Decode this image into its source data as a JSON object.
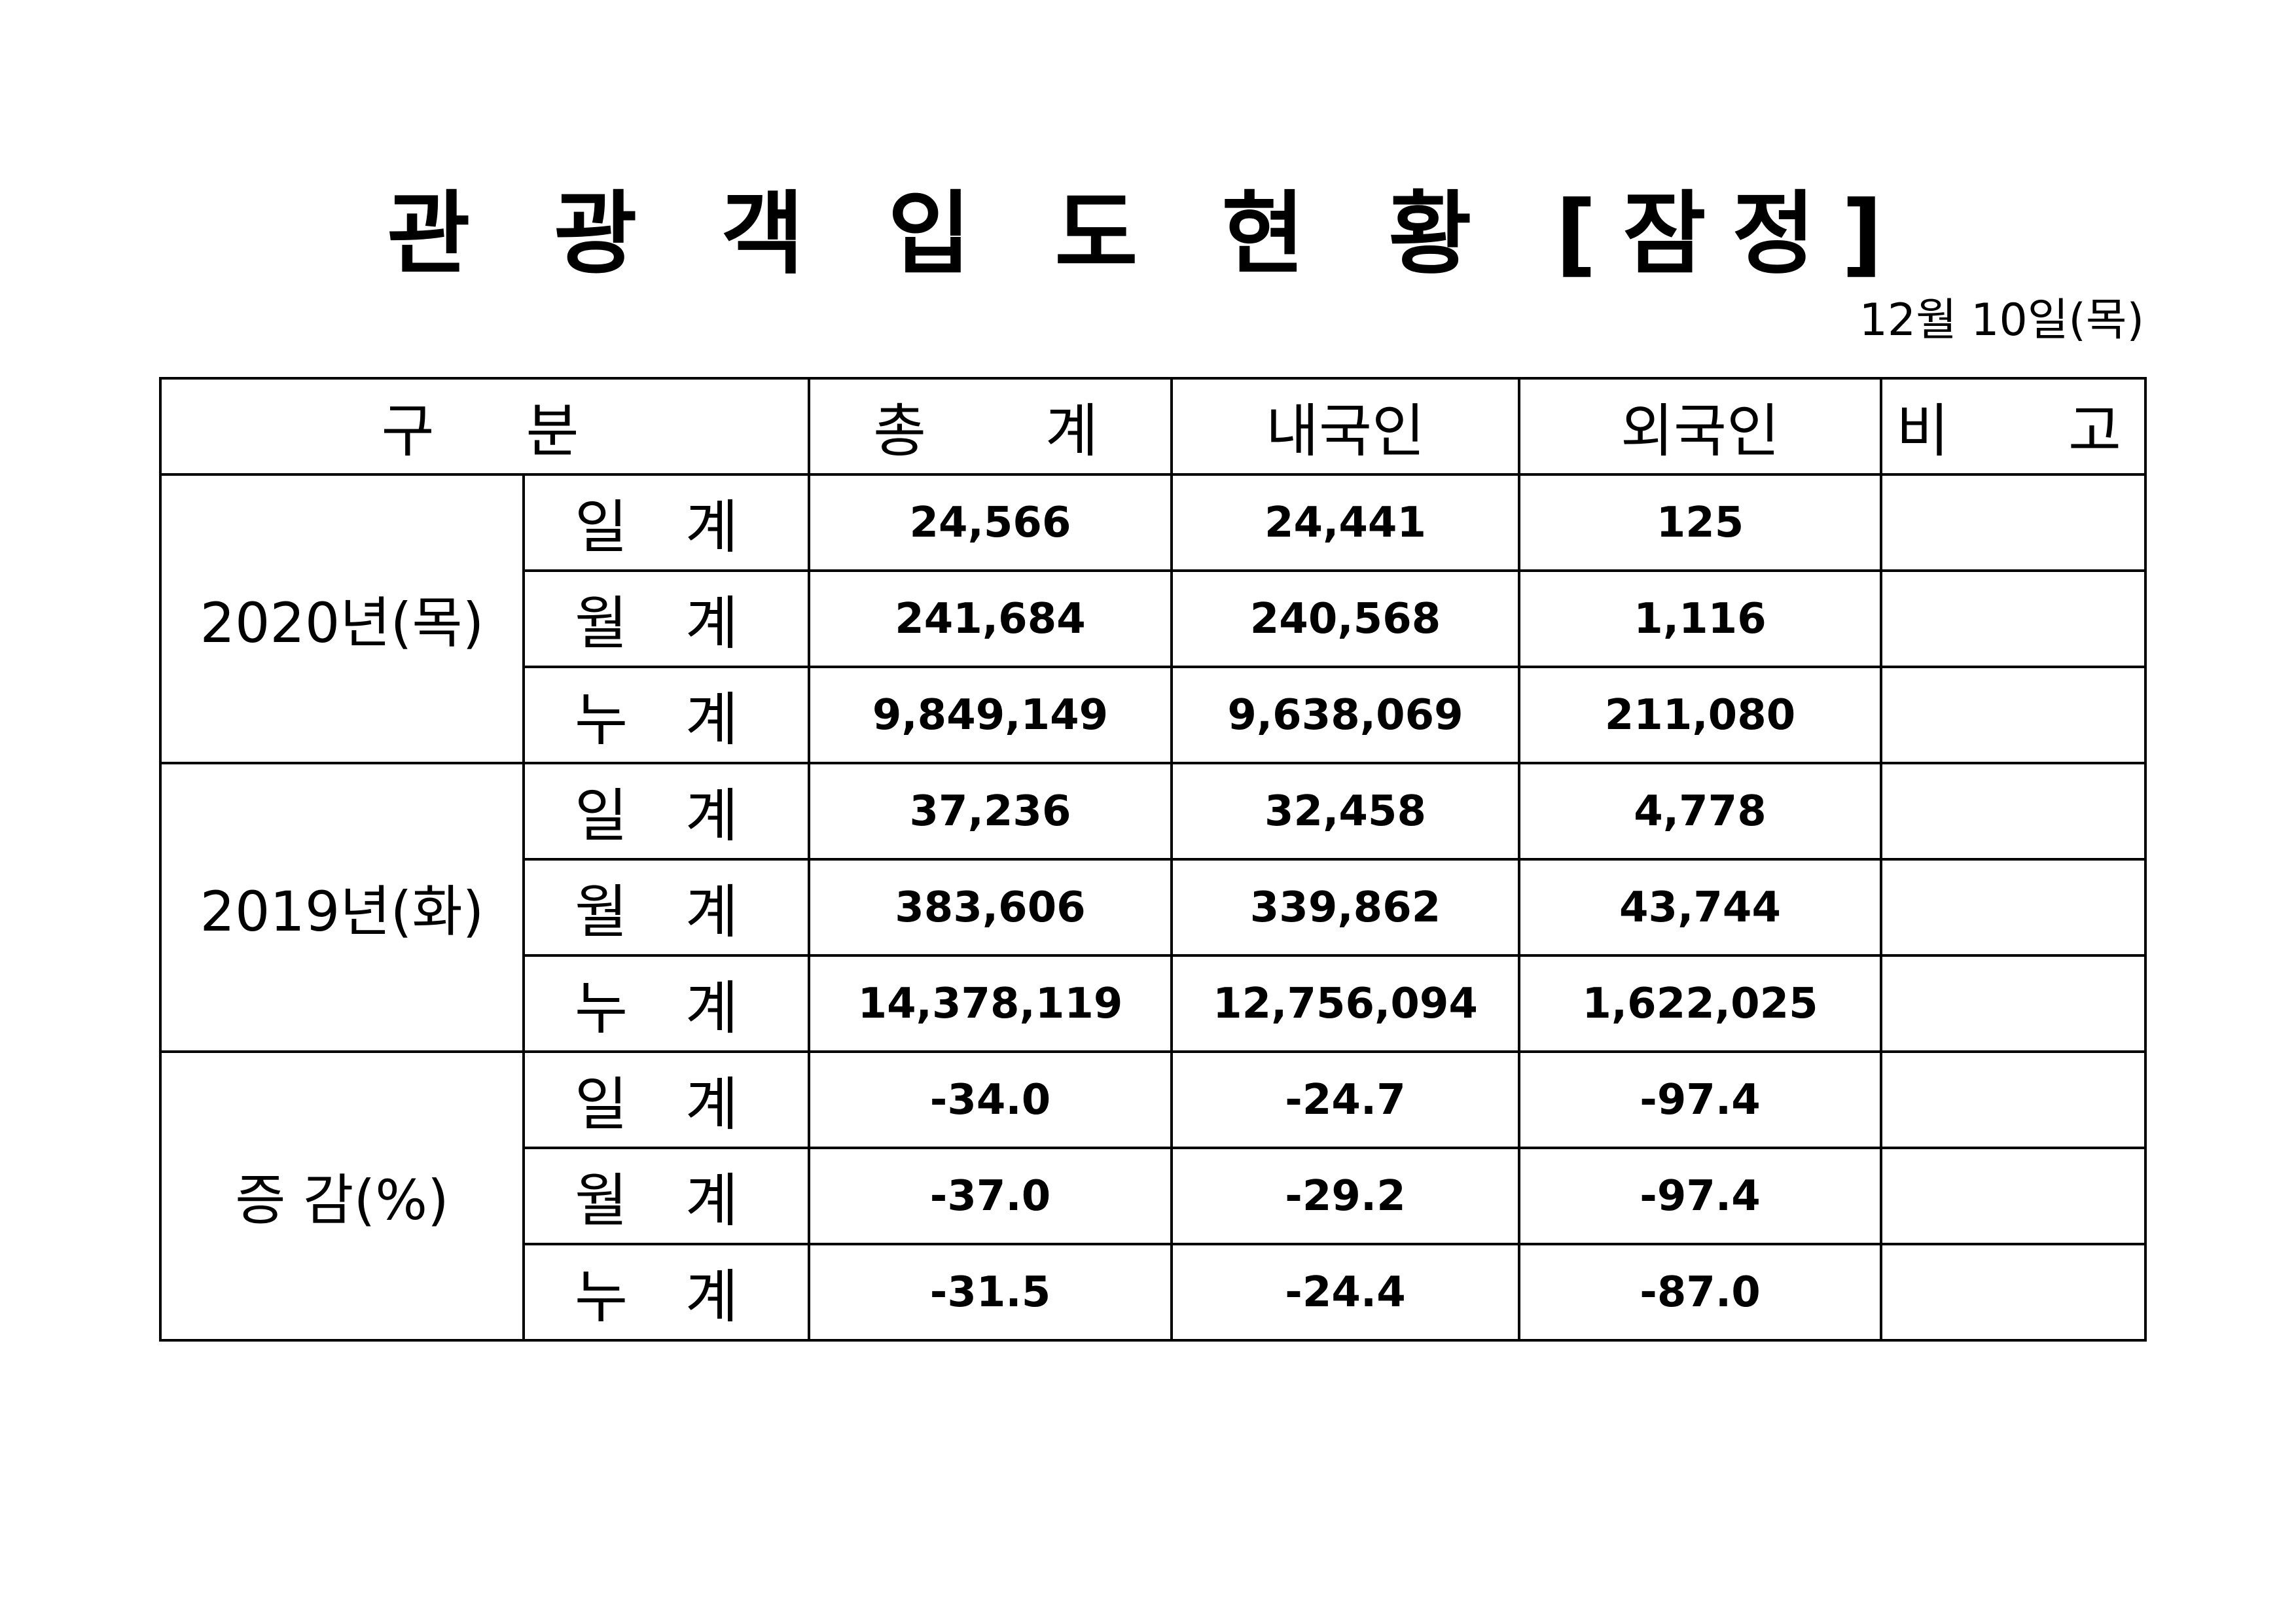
{
  "title": "관 광 객 입 도 현 황 [잠정]",
  "date": "12월  10일(목)",
  "header": {
    "category": "구   분",
    "total": "총    계",
    "domestic": "내국인",
    "foreign": "외국인",
    "remarks": "비    고"
  },
  "groups": [
    {
      "label": "2020년(목)",
      "rows": [
        {
          "label": "일 계",
          "total": "24,566",
          "domestic": "24,441",
          "foreign": "125",
          "remarks": ""
        },
        {
          "label": "월 계",
          "total": "241,684",
          "domestic": "240,568",
          "foreign": "1,116",
          "remarks": ""
        },
        {
          "label": "누 계",
          "total": "9,849,149",
          "domestic": "9,638,069",
          "foreign": "211,080",
          "remarks": ""
        }
      ]
    },
    {
      "label": "2019년(화)",
      "rows": [
        {
          "label": "일 계",
          "total": "37,236",
          "domestic": "32,458",
          "foreign": "4,778",
          "remarks": ""
        },
        {
          "label": "월 계",
          "total": "383,606",
          "domestic": "339,862",
          "foreign": "43,744",
          "remarks": ""
        },
        {
          "label": "누 계",
          "total": "14,378,119",
          "domestic": "12,756,094",
          "foreign": "1,622,025",
          "remarks": ""
        }
      ]
    },
    {
      "label": "증 감(%)",
      "rows": [
        {
          "label": "일 계",
          "total": "-34.0",
          "domestic": "-24.7",
          "foreign": "-97.4",
          "remarks": ""
        },
        {
          "label": "월 계",
          "total": "-37.0",
          "domestic": "-29.2",
          "foreign": "-97.4",
          "remarks": ""
        },
        {
          "label": "누 계",
          "total": "-31.5",
          "domestic": "-24.4",
          "foreign": "-87.0",
          "remarks": ""
        }
      ]
    }
  ]
}
